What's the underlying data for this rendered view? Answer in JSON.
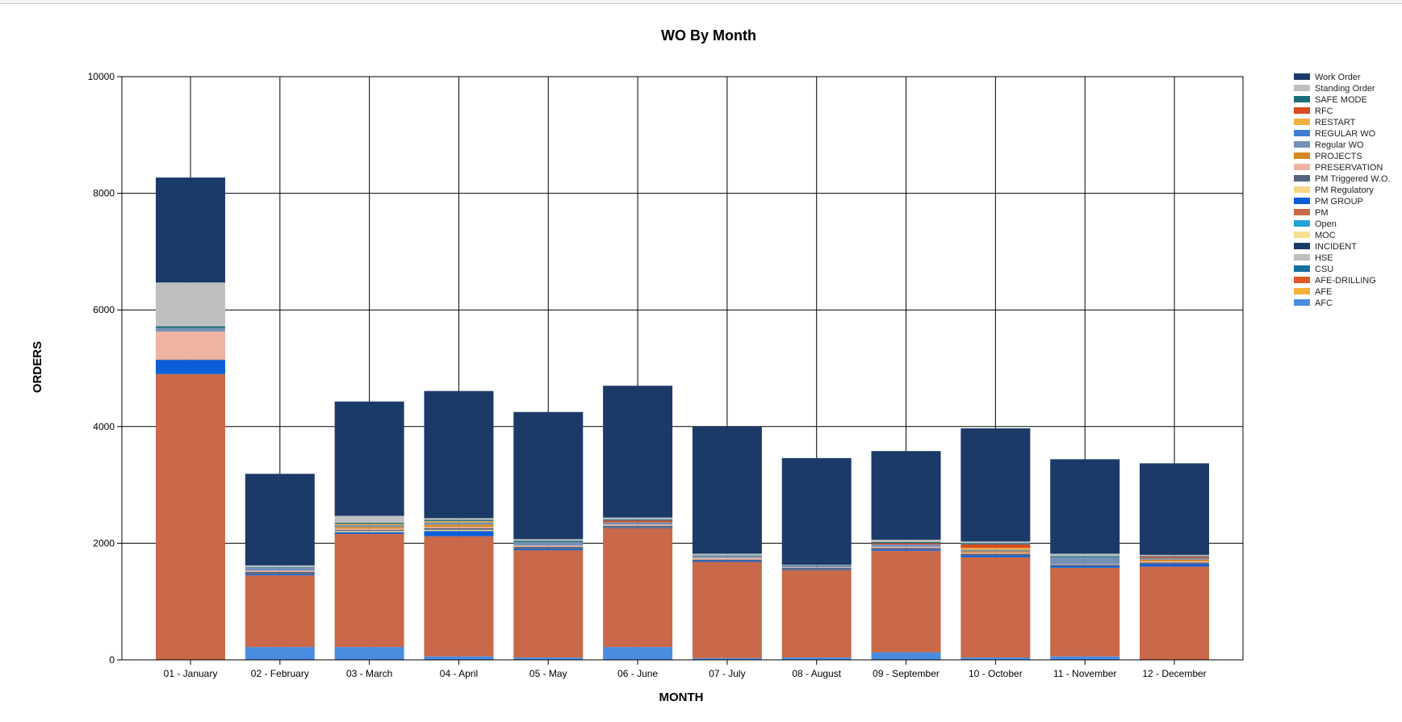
{
  "chart_data": {
    "type": "bar",
    "stacked": true,
    "title": "WO By Month",
    "xlabel": "MONTH",
    "ylabel": "ORDERS",
    "ylim": [
      0,
      10000
    ],
    "yticks": [
      0,
      2000,
      4000,
      6000,
      8000,
      10000
    ],
    "grid": true,
    "legend_position": "right",
    "categories": [
      "01 - January",
      "02 - February",
      "03 - March",
      "04 - April",
      "05 - May",
      "06 - June",
      "07 - July",
      "08 - August",
      "09 - September",
      "10 - October",
      "11 - November",
      "12 - December"
    ],
    "series": [
      {
        "name": "AFC",
        "color": "#4a8de0",
        "values": [
          0,
          220,
          220,
          60,
          40,
          220,
          30,
          40,
          130,
          40,
          60,
          0
        ]
      },
      {
        "name": "AFE",
        "color": "#f4b03c",
        "values": [
          0,
          0,
          0,
          0,
          0,
          0,
          0,
          0,
          0,
          0,
          0,
          0
        ]
      },
      {
        "name": "AFE-DRILLING",
        "color": "#e05a23",
        "values": [
          0,
          0,
          0,
          0,
          0,
          0,
          0,
          0,
          0,
          0,
          0,
          0
        ]
      },
      {
        "name": "CSU",
        "color": "#176fa0",
        "values": [
          0,
          0,
          0,
          0,
          0,
          0,
          0,
          0,
          0,
          0,
          0,
          0
        ]
      },
      {
        "name": "HSE",
        "color": "#bdbdbd",
        "values": [
          0,
          0,
          0,
          0,
          0,
          0,
          0,
          0,
          0,
          0,
          0,
          0
        ]
      },
      {
        "name": "INCIDENT",
        "color": "#1b3a68",
        "values": [
          0,
          0,
          0,
          0,
          0,
          0,
          0,
          0,
          0,
          0,
          0,
          0
        ]
      },
      {
        "name": "MOC",
        "color": "#f8df8f",
        "values": [
          0,
          0,
          0,
          0,
          0,
          0,
          0,
          0,
          0,
          0,
          0,
          0
        ]
      },
      {
        "name": "Open",
        "color": "#1fa3d9",
        "values": [
          0,
          0,
          0,
          0,
          0,
          0,
          0,
          0,
          0,
          0,
          0,
          0
        ]
      },
      {
        "name": "PM",
        "color": "#c9694a",
        "values": [
          4900,
          1230,
          1940,
          2060,
          1840,
          2040,
          1650,
          1500,
          1740,
          1720,
          1520,
          1600
        ]
      },
      {
        "name": "PM GROUP",
        "color": "#0b5ed7",
        "values": [
          240,
          20,
          30,
          90,
          20,
          10,
          20,
          10,
          20,
          30,
          30,
          40
        ]
      },
      {
        "name": "PM Regulatory",
        "color": "#f5d688",
        "values": [
          0,
          0,
          20,
          20,
          0,
          0,
          0,
          0,
          0,
          0,
          0,
          0
        ]
      },
      {
        "name": "PM Triggered W.O.",
        "color": "#56657e",
        "values": [
          10,
          40,
          20,
          30,
          40,
          30,
          20,
          30,
          30,
          30,
          20,
          30
        ]
      },
      {
        "name": "PRESERVATION",
        "color": "#efb3a2",
        "values": [
          480,
          20,
          20,
          20,
          20,
          20,
          30,
          10,
          20,
          20,
          10,
          20
        ]
      },
      {
        "name": "PROJECTS",
        "color": "#d48a22",
        "values": [
          0,
          0,
          30,
          40,
          0,
          0,
          0,
          0,
          0,
          20,
          0,
          30
        ]
      },
      {
        "name": "Regular WO",
        "color": "#7590b5",
        "values": [
          60,
          50,
          30,
          40,
          60,
          40,
          30,
          20,
          40,
          30,
          120,
          30
        ]
      },
      {
        "name": "REGULAR WO",
        "color": "#3f7fd2",
        "values": [
          0,
          0,
          0,
          0,
          0,
          0,
          0,
          0,
          0,
          0,
          0,
          0
        ]
      },
      {
        "name": "RESTART",
        "color": "#f4ae3d",
        "values": [
          0,
          0,
          20,
          20,
          0,
          0,
          0,
          0,
          0,
          30,
          0,
          0
        ]
      },
      {
        "name": "RFC",
        "color": "#d94a1e",
        "values": [
          0,
          0,
          0,
          0,
          0,
          30,
          0,
          0,
          20,
          60,
          0,
          20
        ]
      },
      {
        "name": "SAFE MODE",
        "color": "#1b6f7d",
        "values": [
          30,
          10,
          20,
          20,
          20,
          20,
          10,
          10,
          20,
          20,
          20,
          10
        ]
      },
      {
        "name": "Standing Order",
        "color": "#bfbfbf",
        "values": [
          750,
          30,
          120,
          30,
          30,
          30,
          30,
          10,
          40,
          30,
          40,
          20
        ]
      },
      {
        "name": "Work Order",
        "color": "#1b3a68",
        "values": [
          1800,
          1570,
          1960,
          2180,
          2180,
          2260,
          2180,
          1830,
          1520,
          1940,
          1620,
          1570
        ]
      }
    ]
  }
}
